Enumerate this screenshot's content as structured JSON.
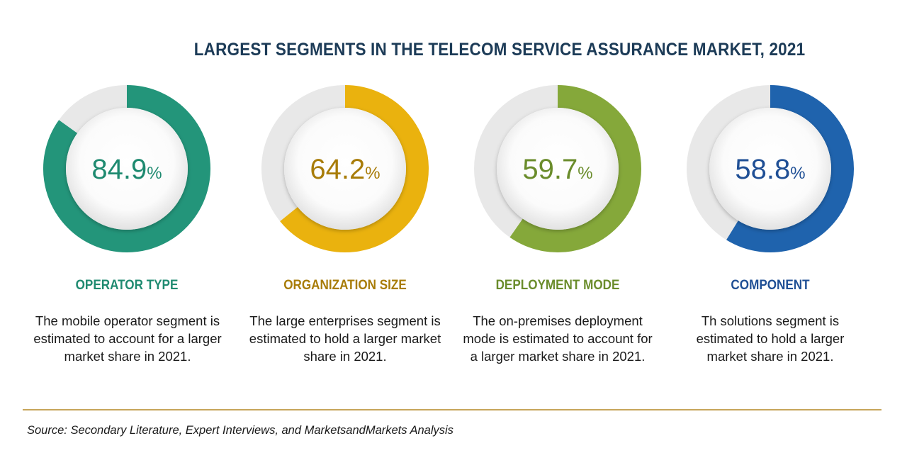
{
  "title": "LARGEST SEGMENTS IN THE TELECOM SERVICE ASSURANCE MARKET, 2021",
  "chart_data": {
    "type": "pie",
    "title": "LARGEST SEGMENTS IN THE TELECOM SERVICE ASSURANCE MARKET, 2021",
    "series": [
      {
        "category": "OPERATOR TYPE",
        "value": 84.9,
        "value_text": "84.9",
        "unit": "%",
        "color": "#23957a",
        "description": "The mobile operator segment is estimated to account for a larger market share in 2021."
      },
      {
        "category": "ORGANIZATION SIZE",
        "value": 64.2,
        "value_text": "64.2",
        "unit": "%",
        "color": "#eab20e",
        "description": "The large enterprises segment is estimated to hold a larger market share in 2021."
      },
      {
        "category": "DEPLOYMENT MODE",
        "value": 59.7,
        "value_text": "59.7",
        "unit": "%",
        "color": "#85a83a",
        "description": "The on-premises deployment mode is estimated to account for a larger market share in 2021."
      },
      {
        "category": "COMPONENT",
        "value": 58.8,
        "value_text": "58.8",
        "unit": "%",
        "color": "#1f63ad",
        "description": "Th solutions segment is estimated to hold a larger market share in 2021."
      }
    ],
    "remainder_color": "#e8e8e8",
    "label_colors": [
      "#1e8a70",
      "#a87c08",
      "#6a8c2b",
      "#1f4f95"
    ]
  },
  "source": "Source: Secondary Literature, Expert Interviews, and MarketsandMarkets Analysis"
}
